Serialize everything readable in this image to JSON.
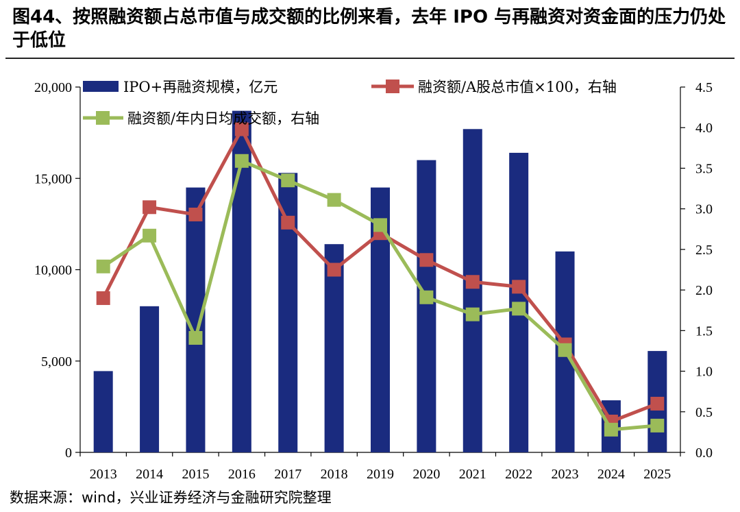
{
  "title": "图44、按照融资额占总市值与成交额的比例来看，去年 IPO 与再融资对资金面的压力仍处于低位",
  "source": "数据来源：wind，兴业证券经济与金融研究院整理",
  "colors": {
    "bar": "#1a2b7f",
    "line1": "#c0504d",
    "line2": "#9bbb59",
    "axis": "#000000"
  },
  "chart_data": {
    "type": "bar+line",
    "categories": [
      "2013",
      "2014",
      "2015",
      "2016",
      "2017",
      "2018",
      "2019",
      "2020",
      "2021",
      "2022",
      "2023",
      "2024",
      "2025"
    ],
    "y_left": {
      "lim": [
        0,
        20000
      ],
      "ticks": [
        0,
        5000,
        10000,
        15000,
        20000
      ],
      "tick_labels": [
        "0",
        "5,000",
        "10,000",
        "15,000",
        "20,000"
      ]
    },
    "y_right": {
      "lim": [
        0,
        4.5
      ],
      "ticks": [
        0,
        0.5,
        1,
        1.5,
        2,
        2.5,
        3,
        3.5,
        4,
        4.5
      ],
      "tick_labels": [
        "0.0",
        "0.5",
        "1.0",
        "1.5",
        "2.0",
        "2.5",
        "3.0",
        "3.5",
        "4.0",
        "4.5"
      ]
    },
    "series": [
      {
        "name": "IPO+再融资规模，亿元",
        "type": "bar",
        "axis": "left",
        "values": [
          4450,
          8000,
          14500,
          18700,
          15300,
          11400,
          14500,
          16000,
          17700,
          16400,
          11000,
          2850,
          5550
        ]
      },
      {
        "name": "融资额/A股总市值×100，右轴",
        "type": "line",
        "axis": "right",
        "values": [
          1.9,
          3.02,
          2.93,
          3.98,
          2.83,
          2.25,
          2.7,
          2.37,
          2.1,
          2.04,
          1.33,
          0.38,
          0.6
        ]
      },
      {
        "name": "融资额/年内日均成交额，右轴",
        "type": "line",
        "axis": "right",
        "values": [
          2.29,
          2.67,
          1.41,
          3.59,
          3.35,
          3.11,
          2.8,
          1.91,
          1.7,
          1.77,
          1.26,
          0.28,
          0.33
        ]
      }
    ]
  }
}
